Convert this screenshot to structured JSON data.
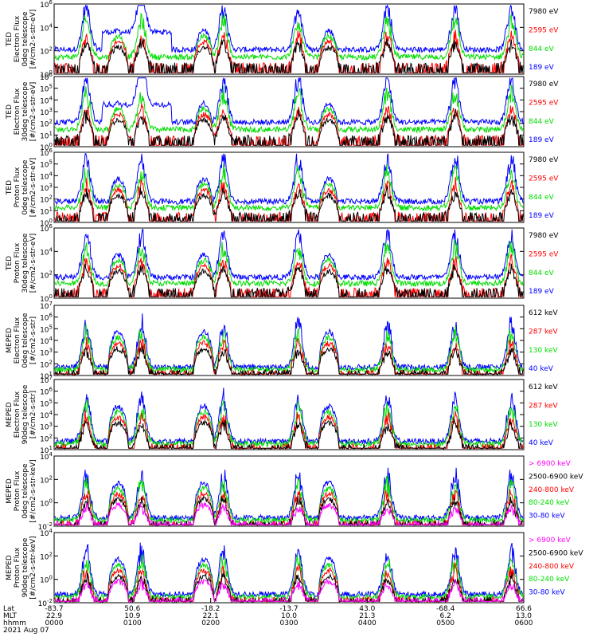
{
  "chart_data": [
    {
      "type": "line",
      "ylabel": [
        "TED",
        "Electron Flux",
        "0deg telescope",
        "[#/cm2-s-str-eV]"
      ],
      "y_log": true,
      "ylim": [
        1,
        1000000
      ],
      "ytick_exp": [
        "0",
        "2",
        "4",
        "6"
      ],
      "series": [
        {
          "name": "7980 eV",
          "color": "#000000"
        },
        {
          "name": "2595 eV",
          "color": "#ff0000"
        },
        {
          "name": "844 eV",
          "color": "#00dd00"
        },
        {
          "name": "189 eV",
          "color": "#0000ff"
        }
      ]
    },
    {
      "type": "line",
      "ylabel": [
        "TED",
        "Electron Flux",
        "30deg telescope",
        "[#/cm2-s-str-eV]"
      ],
      "y_log": true,
      "ylim": [
        1,
        1000000
      ],
      "ytick_exp": [
        "0",
        "1",
        "2",
        "3",
        "4",
        "5",
        "6"
      ],
      "series": [
        {
          "name": "7980 eV",
          "color": "#000000"
        },
        {
          "name": "2595 eV",
          "color": "#ff0000"
        },
        {
          "name": "844 eV",
          "color": "#00dd00"
        },
        {
          "name": "189 eV",
          "color": "#0000ff"
        }
      ]
    },
    {
      "type": "line",
      "ylabel": [
        "TED",
        "Proton Flux",
        "0deg telescope",
        "[#/cm2-s-str-eV]"
      ],
      "y_log": true,
      "ylim": [
        1,
        1000000
      ],
      "ytick_exp": [
        "0",
        "1",
        "2",
        "3",
        "4",
        "5",
        "6"
      ],
      "series": [
        {
          "name": "7980 eV",
          "color": "#000000"
        },
        {
          "name": "2595 eV",
          "color": "#ff0000"
        },
        {
          "name": "844 eV",
          "color": "#00dd00"
        },
        {
          "name": "189 eV",
          "color": "#0000ff"
        }
      ]
    },
    {
      "type": "line",
      "ylabel": [
        "TED",
        "Proton Flux",
        "30deg telescope",
        "[#/cm2-s-str-eV]"
      ],
      "y_log": true,
      "ylim": [
        1,
        1000000
      ],
      "ytick_exp": [
        "0",
        "2",
        "4",
        "6"
      ],
      "series": [
        {
          "name": "7980 eV",
          "color": "#000000"
        },
        {
          "name": "2595 eV",
          "color": "#ff0000"
        },
        {
          "name": "844 eV",
          "color": "#00dd00"
        },
        {
          "name": "189 eV",
          "color": "#0000ff"
        }
      ]
    },
    {
      "type": "line",
      "ylabel": [
        "MEPED",
        "Electron Flux",
        "0deg telescope",
        "[#/cm2-s-str]"
      ],
      "y_log": true,
      "ylim": [
        10,
        10000000
      ],
      "ytick_exp": [
        "1",
        "2",
        "3",
        "4",
        "5",
        "6",
        "7"
      ],
      "series": [
        {
          "name": "612 keV",
          "color": "#000000"
        },
        {
          "name": "287 keV",
          "color": "#ff0000"
        },
        {
          "name": "130 keV",
          "color": "#00dd00"
        },
        {
          "name": "40 keV",
          "color": "#0000ff"
        }
      ]
    },
    {
      "type": "line",
      "ylabel": [
        "MEPED",
        "Electron Flux",
        "90deg telescope",
        "[#/cm2-s-str]"
      ],
      "y_log": true,
      "ylim": [
        10,
        10000000
      ],
      "ytick_exp": [
        "1",
        "2",
        "3",
        "4",
        "5",
        "6",
        "7"
      ],
      "series": [
        {
          "name": "612 keV",
          "color": "#000000"
        },
        {
          "name": "287 keV",
          "color": "#ff0000"
        },
        {
          "name": "130 keV",
          "color": "#00dd00"
        },
        {
          "name": "40 keV",
          "color": "#0000ff"
        }
      ]
    },
    {
      "type": "line",
      "ylabel": [
        "MEPED",
        "Proton Flux",
        "0deg telescope",
        "[#/cm2-s-str-keV]"
      ],
      "y_log": true,
      "ylim": [
        0.01,
        1000000
      ],
      "ytick_exp": [
        "-2",
        "0",
        "2",
        "4"
      ],
      "series": [
        {
          "name": "> 6900 keV",
          "color": "#ff00ff"
        },
        {
          "name": "2500-6900 keV",
          "color": "#000000"
        },
        {
          "name": "240-800 keV",
          "color": "#ff0000"
        },
        {
          "name": "80-240 keV",
          "color": "#00dd00"
        },
        {
          "name": "30-80 keV",
          "color": "#0000ff"
        }
      ]
    },
    {
      "type": "line",
      "ylabel": [
        "MEPED",
        "Proton Flux",
        "90deg telescope",
        "[#/cm2-s-str-keV]"
      ],
      "y_log": true,
      "ylim": [
        0.01,
        1000000
      ],
      "ytick_exp": [
        "-2",
        "0",
        "2",
        "4"
      ],
      "series": [
        {
          "name": "> 6900 keV",
          "color": "#ff00ff"
        },
        {
          "name": "2500-6900 keV",
          "color": "#000000"
        },
        {
          "name": "240-800 keV",
          "color": "#ff0000"
        },
        {
          "name": "80-240 keV",
          "color": "#00dd00"
        },
        {
          "name": "30-80 keV",
          "color": "#0000ff"
        }
      ]
    }
  ],
  "xaxis": {
    "row_labels": [
      "Lat",
      "MLT",
      "hhmm",
      "2021 Aug 07"
    ],
    "lat": [
      "-83.7",
      "50.6",
      "-18.2",
      "-13.7",
      "43.0",
      "-68.4",
      "66.6"
    ],
    "mlt": [
      "22.9",
      "10.9",
      "22.1",
      "10.0",
      "21.3",
      "6.2",
      "13.0"
    ],
    "hhmm": [
      "0000",
      "0100",
      "0200",
      "0300",
      "0400",
      "0500",
      "0600"
    ]
  }
}
